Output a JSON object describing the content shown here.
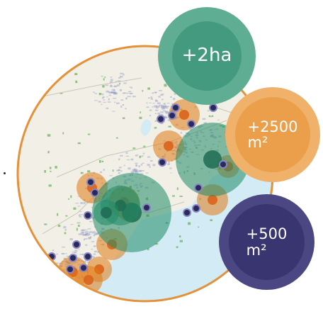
{
  "map": {
    "water_color": "#d3ebf5",
    "land_color": "#f1efe6",
    "ring_color": "#e4923a",
    "urban_color": "#9aa3c7",
    "park_color": "#6cb35f"
  },
  "legend": {
    "green": {
      "value": "+2ha",
      "unit": "",
      "outer_color": "#5fae93",
      "inner_color": "#2e8b6e"
    },
    "orange": {
      "value": "+2500",
      "unit": "m²",
      "outer_color": "#f0b26a",
      "inner_color": "#e8902f"
    },
    "purple": {
      "value": "+500",
      "unit": "m²",
      "outer_color": "#4b4782",
      "inner_color": "#2a2762"
    }
  },
  "markers": {
    "green_colors": {
      "halo": "#1f8a66",
      "core": "#1d6b52"
    },
    "orange_colors": {
      "halo": "#e07a14",
      "core": "#d9631b"
    },
    "purple_colors": {
      "fill": "#29295c",
      "stroke": "#8a86c0"
    }
  }
}
